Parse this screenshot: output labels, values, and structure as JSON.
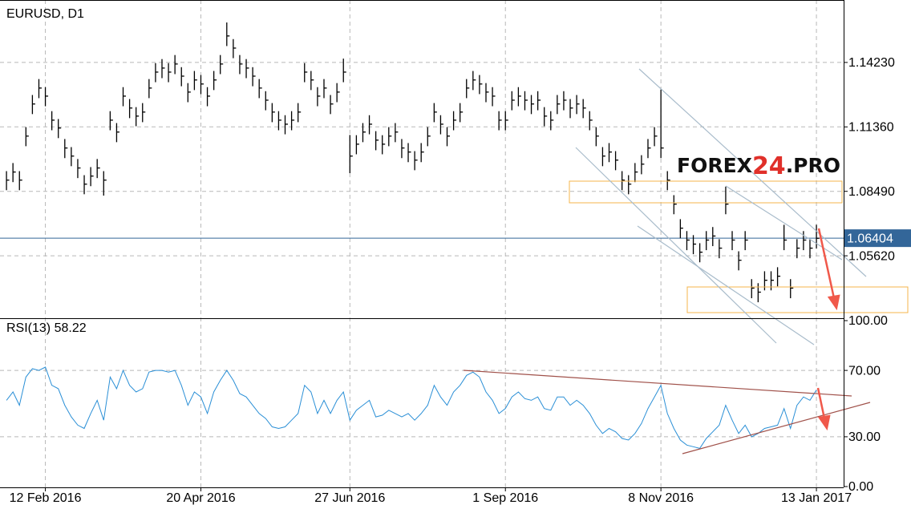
{
  "chart_data": [
    {
      "type": "ohlc",
      "title": "EURUSD, D1",
      "color": "#000000",
      "watermark": [
        "FOREX",
        "24",
        ".PRO"
      ],
      "xlim": [
        -1,
        129.2
      ],
      "xticks": [
        {
          "value": 6,
          "label": "12 Feb 2016"
        },
        {
          "value": 30,
          "label": "20 Apr 2016"
        },
        {
          "value": 53,
          "label": "27 Jun 2016"
        },
        {
          "value": 77,
          "label": "1 Sep 2016"
        },
        {
          "value": 101,
          "label": "8 Nov 2016"
        },
        {
          "value": 125,
          "label": "13 Jan 2017"
        }
      ],
      "ylim": [
        1.02839,
        1.17011
      ],
      "yticks": [
        {
          "value": 1.1423,
          "label": "1.14230"
        },
        {
          "value": 1.1136,
          "label": "1.11360"
        },
        {
          "value": 1.0849,
          "label": "1.08490"
        },
        {
          "value": 1.0562,
          "label": "1.05620"
        }
      ],
      "last_price": 1.06404,
      "grid": true,
      "high": [
        1.0939,
        1.0975,
        1.0939,
        1.1135,
        1.1278,
        1.1349,
        1.1313,
        1.1206,
        1.1171,
        1.1082,
        1.1046,
        1.0993,
        1.0921,
        1.0957,
        1.0993,
        1.0939,
        1.1206,
        1.1153,
        1.1313,
        1.126,
        1.1224,
        1.1242,
        1.1349,
        1.142,
        1.1438,
        1.142,
        1.1456,
        1.1402,
        1.1331,
        1.1385,
        1.1367,
        1.1313,
        1.1385,
        1.1456,
        1.1601,
        1.1527,
        1.1456,
        1.1438,
        1.1402,
        1.1349,
        1.1295,
        1.1242,
        1.1206,
        1.1188,
        1.1206,
        1.1242,
        1.142,
        1.1385,
        1.1313,
        1.1349,
        1.1278,
        1.1331,
        1.144,
        1.11,
        1.1099,
        1.1153,
        1.1188,
        1.1117,
        1.1099,
        1.1135,
        1.1153,
        1.1082,
        1.1064,
        1.1028,
        1.1064,
        1.1135,
        1.1242,
        1.1188,
        1.1135,
        1.1206,
        1.1242,
        1.1349,
        1.1385,
        1.1367,
        1.1331,
        1.1313,
        1.1206,
        1.1206,
        1.1295,
        1.1313,
        1.1295,
        1.1278,
        1.1295,
        1.1224,
        1.1206,
        1.1278,
        1.1295,
        1.126,
        1.1278,
        1.126,
        1.1206,
        1.1135,
        1.1046,
        1.1064,
        1.1028,
        1.0939,
        1.0921,
        1.0975,
        1.101,
        1.1082,
        1.1135,
        1.1302,
        1.0939,
        1.0832,
        1.0725,
        1.0672,
        1.0654,
        1.0618,
        1.0672,
        1.069,
        1.0636,
        1.087,
        1.0672,
        1.0582,
        1.0672,
        1.0458,
        1.044,
        1.0493,
        1.0493,
        1.0511,
        1.07,
        1.0458,
        1.0636,
        1.0672,
        1.0636,
        1.07
      ],
      "low": [
        1.0854,
        1.089,
        1.0854,
        1.105,
        1.1193,
        1.1264,
        1.1228,
        1.1121,
        1.1086,
        1.0997,
        1.0961,
        1.0908,
        1.0836,
        1.0872,
        1.0908,
        1.083,
        1.1121,
        1.1068,
        1.1228,
        1.1175,
        1.1139,
        1.1157,
        1.1264,
        1.1335,
        1.1353,
        1.1335,
        1.1371,
        1.1317,
        1.1246,
        1.13,
        1.1282,
        1.1228,
        1.13,
        1.1371,
        1.1496,
        1.1442,
        1.1371,
        1.1353,
        1.1317,
        1.1264,
        1.121,
        1.1157,
        1.1121,
        1.1103,
        1.1121,
        1.1157,
        1.1335,
        1.13,
        1.1228,
        1.1264,
        1.1193,
        1.1246,
        1.1335,
        1.093,
        1.1014,
        1.1068,
        1.1103,
        1.1032,
        1.1014,
        1.105,
        1.1068,
        1.0997,
        1.0979,
        1.0943,
        1.0979,
        1.105,
        1.1157,
        1.1103,
        1.105,
        1.1121,
        1.1157,
        1.1264,
        1.13,
        1.1282,
        1.1246,
        1.1228,
        1.1121,
        1.1121,
        1.121,
        1.1228,
        1.121,
        1.1193,
        1.121,
        1.1139,
        1.1121,
        1.1193,
        1.121,
        1.1175,
        1.1193,
        1.1175,
        1.1121,
        1.105,
        1.0961,
        1.0979,
        1.0943,
        1.0854,
        1.0836,
        1.089,
        1.0925,
        1.0997,
        1.105,
        1.0997,
        1.0854,
        1.0747,
        1.064,
        1.0587,
        1.0569,
        1.0533,
        1.0587,
        1.0605,
        1.0551,
        1.0747,
        1.0587,
        1.0497,
        1.0587,
        1.0373,
        1.0355,
        1.0408,
        1.0408,
        1.0426,
        1.0587,
        1.0373,
        1.0551,
        1.0587,
        1.0551,
        1.0595
      ],
      "close": [
        1.0899,
        1.0935,
        1.0899,
        1.1095,
        1.1238,
        1.1309,
        1.1273,
        1.1166,
        1.1131,
        1.1042,
        1.1006,
        1.0953,
        1.0881,
        1.0917,
        1.0953,
        1.0899,
        1.1166,
        1.1113,
        1.1273,
        1.122,
        1.1184,
        1.1202,
        1.1309,
        1.138,
        1.1398,
        1.138,
        1.1416,
        1.1362,
        1.1291,
        1.1345,
        1.1327,
        1.1273,
        1.1345,
        1.1416,
        1.1541,
        1.1487,
        1.1416,
        1.1398,
        1.1362,
        1.1309,
        1.1255,
        1.1202,
        1.1166,
        1.1148,
        1.1166,
        1.1202,
        1.138,
        1.1345,
        1.1273,
        1.1309,
        1.1238,
        1.1291,
        1.138,
        1.1006,
        1.1059,
        1.1113,
        1.1148,
        1.1077,
        1.1059,
        1.1095,
        1.1113,
        1.1042,
        1.1024,
        1.0988,
        1.1024,
        1.1095,
        1.1202,
        1.1148,
        1.1095,
        1.1166,
        1.1202,
        1.1309,
        1.1345,
        1.1327,
        1.1291,
        1.1273,
        1.1166,
        1.1166,
        1.1255,
        1.1273,
        1.1255,
        1.1238,
        1.1255,
        1.1184,
        1.1166,
        1.1238,
        1.1255,
        1.122,
        1.1238,
        1.122,
        1.1166,
        1.1095,
        1.1006,
        1.1024,
        1.0988,
        1.0899,
        1.0881,
        1.0935,
        1.097,
        1.1042,
        1.1095,
        1.1042,
        1.0899,
        1.0792,
        1.0685,
        1.0632,
        1.0614,
        1.0578,
        1.0632,
        1.065,
        1.0596,
        1.0792,
        1.0632,
        1.0542,
        1.0632,
        1.0418,
        1.04,
        1.0453,
        1.0453,
        1.0471,
        1.0632,
        1.0418,
        1.0596,
        1.0632,
        1.0596,
        1.064
      ]
    },
    {
      "type": "line",
      "title": "RSI(13) 58.22",
      "color": "#2a8fd6",
      "ylim": [
        0,
        100
      ],
      "yticks": [
        {
          "value": 100,
          "label": "100.00"
        },
        {
          "value": 70,
          "label": "70.00"
        },
        {
          "value": 30,
          "label": "30.00"
        },
        {
          "value": 0,
          "label": "0.00"
        }
      ],
      "values": [
        52,
        57,
        49,
        66,
        71,
        70,
        72,
        61,
        59,
        49,
        42,
        37,
        35,
        44,
        52,
        40,
        66,
        59,
        70,
        61,
        57,
        59,
        69,
        70,
        70,
        69,
        70,
        61,
        49,
        57,
        54,
        44,
        57,
        64,
        70,
        64,
        56,
        54,
        49,
        44,
        41,
        36,
        35,
        36,
        40,
        44,
        61,
        57,
        44,
        52,
        44,
        52,
        57,
        40,
        46,
        49,
        52,
        42,
        43,
        46,
        44,
        42,
        44,
        40,
        44,
        49,
        61,
        54,
        49,
        57,
        61,
        67,
        69,
        66,
        57,
        52,
        44,
        47,
        54,
        57,
        53,
        52,
        54,
        47,
        46,
        54,
        54,
        49,
        52,
        49,
        44,
        37,
        32,
        35,
        33,
        29,
        28,
        32,
        38,
        47,
        54,
        61,
        44,
        35,
        28,
        25,
        24,
        23,
        29,
        33,
        37,
        49,
        40,
        32,
        37,
        30,
        32,
        35,
        36,
        37,
        47,
        35,
        49,
        54,
        52,
        58.22
      ]
    }
  ]
}
